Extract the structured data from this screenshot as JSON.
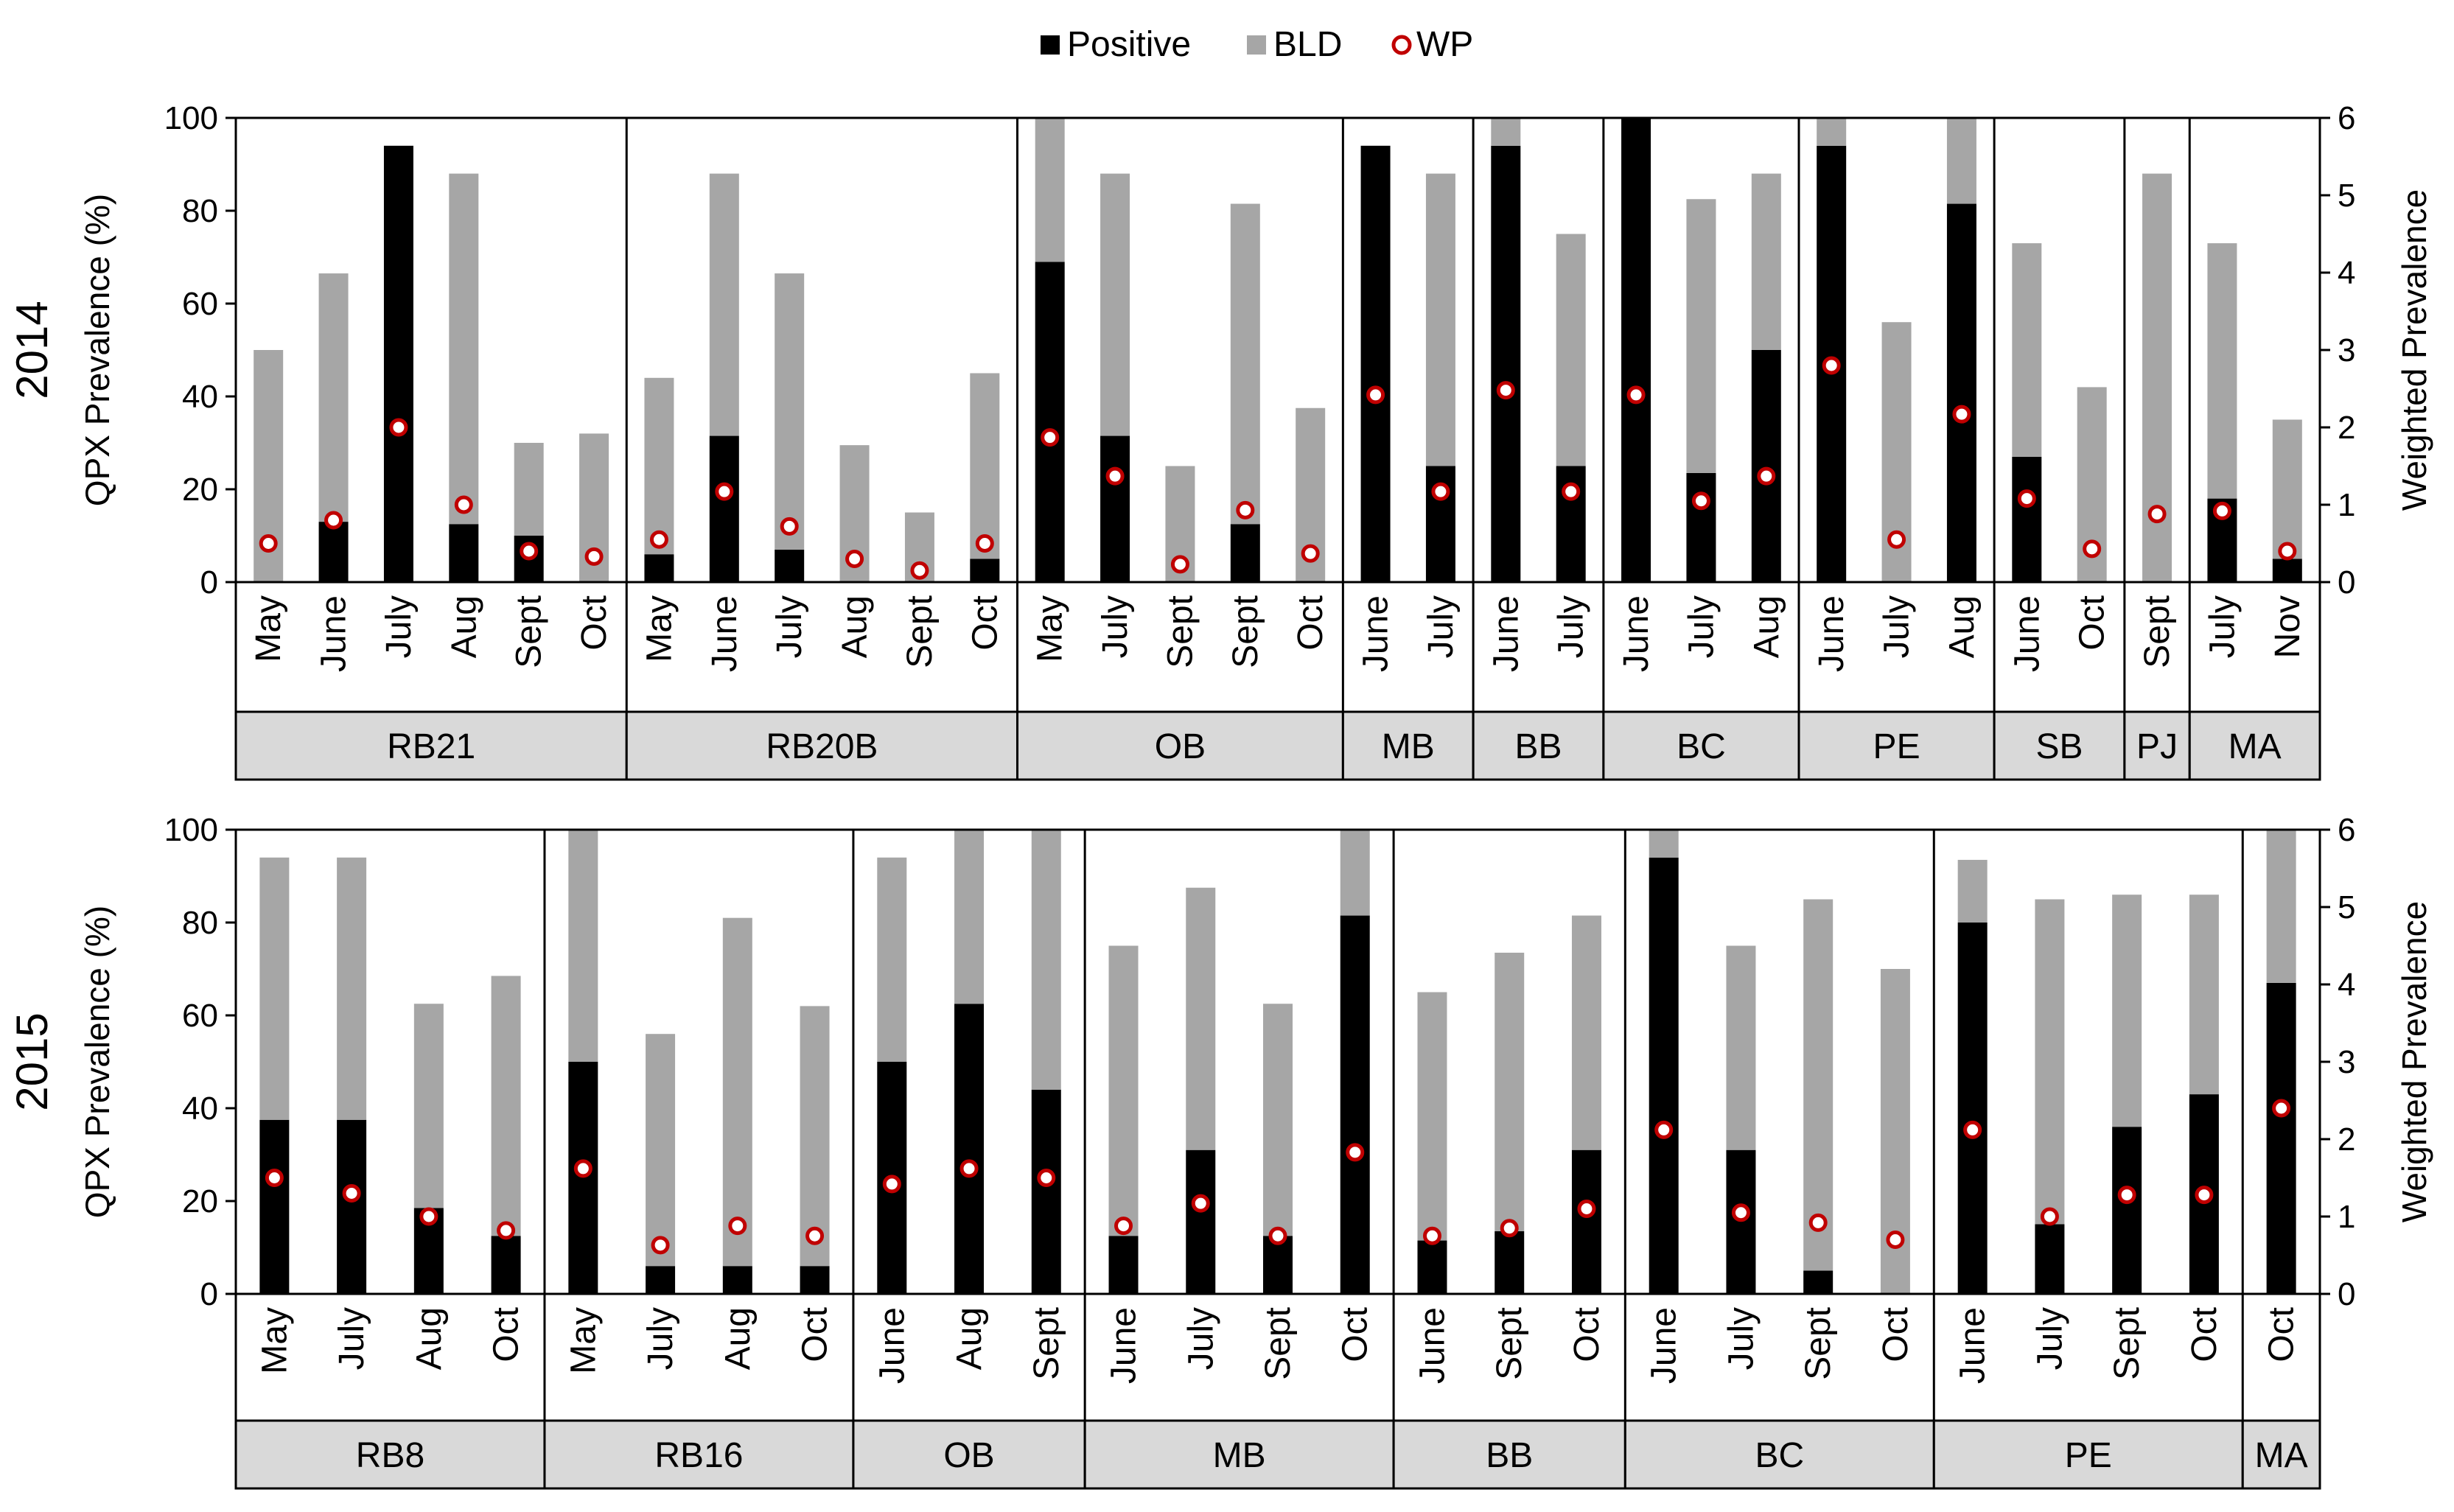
{
  "legend": {
    "positive_label": "Positive",
    "bld_label": "BLD",
    "wp_label": "WP"
  },
  "colors": {
    "positive": "#000000",
    "bld": "#a6a6a6",
    "wp_marker_stroke": "#c00000",
    "wp_marker_fill": "#ffffff",
    "group_band": "#d9d9d9"
  },
  "chart_data": [
    {
      "type": "bar",
      "stacking": "stacked",
      "title": "2014",
      "ylabel": "QPX Prevalence (%)",
      "y2label": "Weighted Prevalence",
      "ylim": [
        0,
        100
      ],
      "y2lim": [
        0,
        6
      ],
      "yticks": [
        "0",
        "20",
        "40",
        "60",
        "80",
        "100"
      ],
      "y2ticks": [
        "0",
        "1",
        "2",
        "3",
        "4",
        "5",
        "6"
      ],
      "groups": [
        {
          "name": "RB21",
          "bars": [
            {
              "label": "May",
              "positive": 0,
              "bld": 50,
              "wp": 0.5
            },
            {
              "label": "June",
              "positive": 13,
              "bld": 53.5,
              "wp": 0.8
            },
            {
              "label": "July",
              "positive": 94,
              "bld": 0,
              "wp": 2.0
            },
            {
              "label": "Aug",
              "positive": 12.5,
              "bld": 75.5,
              "wp": 1.0
            },
            {
              "label": "Sept",
              "positive": 10,
              "bld": 20,
              "wp": 0.4
            },
            {
              "label": "Oct",
              "positive": 0,
              "bld": 32,
              "wp": 0.33
            }
          ]
        },
        {
          "name": "RB20B",
          "bars": [
            {
              "label": "May",
              "positive": 6,
              "bld": 38,
              "wp": 0.55
            },
            {
              "label": "June",
              "positive": 31.5,
              "bld": 56.5,
              "wp": 1.17
            },
            {
              "label": "July",
              "positive": 7,
              "bld": 59.5,
              "wp": 0.72
            },
            {
              "label": "Aug",
              "positive": 0,
              "bld": 29.5,
              "wp": 0.3
            },
            {
              "label": "Sept",
              "positive": 0,
              "bld": 15,
              "wp": 0.15
            },
            {
              "label": "Oct",
              "positive": 5,
              "bld": 40,
              "wp": 0.5
            }
          ]
        },
        {
          "name": "OB",
          "bars": [
            {
              "label": "May",
              "positive": 69,
              "bld": 31,
              "wp": 1.87
            },
            {
              "label": "July",
              "positive": 31.5,
              "bld": 56.5,
              "wp": 1.37
            },
            {
              "label": "Sept",
              "positive": 0,
              "bld": 25,
              "wp": 0.23
            },
            {
              "label": "Sept",
              "positive": 12.5,
              "bld": 69,
              "wp": 0.93
            },
            {
              "label": "Oct",
              "positive": 0,
              "bld": 37.5,
              "wp": 0.37
            }
          ]
        },
        {
          "name": "MB",
          "bars": [
            {
              "label": "June",
              "positive": 94,
              "bld": 0,
              "wp": 2.42
            },
            {
              "label": "July",
              "positive": 25,
              "bld": 63,
              "wp": 1.17
            }
          ]
        },
        {
          "name": "BB",
          "bars": [
            {
              "label": "June",
              "positive": 94,
              "bld": 6,
              "wp": 2.48
            },
            {
              "label": "July",
              "positive": 25,
              "bld": 50,
              "wp": 1.17
            }
          ]
        },
        {
          "name": "BC",
          "bars": [
            {
              "label": "June",
              "positive": 100,
              "bld": 0,
              "wp": 2.42
            },
            {
              "label": "July",
              "positive": 23.5,
              "bld": 59,
              "wp": 1.05
            },
            {
              "label": "Aug",
              "positive": 50,
              "bld": 38,
              "wp": 1.37
            }
          ]
        },
        {
          "name": "PE",
          "bars": [
            {
              "label": "June",
              "positive": 94,
              "bld": 6,
              "wp": 2.8
            },
            {
              "label": "July",
              "positive": 0,
              "bld": 56,
              "wp": 0.55
            },
            {
              "label": "Aug",
              "positive": 81.5,
              "bld": 18.5,
              "wp": 2.17
            }
          ]
        },
        {
          "name": "SB",
          "bars": [
            {
              "label": "June",
              "positive": 27,
              "bld": 46,
              "wp": 1.08
            },
            {
              "label": "Oct",
              "positive": 0,
              "bld": 42,
              "wp": 0.43
            }
          ]
        },
        {
          "name": "PJ",
          "bars": [
            {
              "label": "Sept",
              "positive": 0,
              "bld": 88,
              "wp": 0.88
            }
          ]
        },
        {
          "name": "MA",
          "bars": [
            {
              "label": "July",
              "positive": 18,
              "bld": 55,
              "wp": 0.92
            },
            {
              "label": "Nov",
              "positive": 5,
              "bld": 30,
              "wp": 0.4
            }
          ]
        }
      ]
    },
    {
      "type": "bar",
      "stacking": "stacked",
      "title": "2015",
      "ylabel": "QPX Prevalence (%)",
      "y2label": "Weighted Prevalence",
      "ylim": [
        0,
        100
      ],
      "y2lim": [
        0,
        6
      ],
      "yticks": [
        "0",
        "20",
        "40",
        "60",
        "80",
        "100"
      ],
      "y2ticks": [
        "0",
        "1",
        "2",
        "3",
        "4",
        "5",
        "6"
      ],
      "groups": [
        {
          "name": "RB8",
          "bars": [
            {
              "label": "May",
              "positive": 37.5,
              "bld": 56.5,
              "wp": 1.5
            },
            {
              "label": "July",
              "positive": 37.5,
              "bld": 56.5,
              "wp": 1.3
            },
            {
              "label": "Aug",
              "positive": 18.5,
              "bld": 44,
              "wp": 1.0
            },
            {
              "label": "Oct",
              "positive": 12.5,
              "bld": 56,
              "wp": 0.82
            }
          ]
        },
        {
          "name": "RB16",
          "bars": [
            {
              "label": "May",
              "positive": 50,
              "bld": 50,
              "wp": 1.62
            },
            {
              "label": "July",
              "positive": 6,
              "bld": 50,
              "wp": 0.63
            },
            {
              "label": "Aug",
              "positive": 6,
              "bld": 75,
              "wp": 0.88
            },
            {
              "label": "Oct",
              "positive": 6,
              "bld": 56,
              "wp": 0.75
            }
          ]
        },
        {
          "name": "OB",
          "bars": [
            {
              "label": "June",
              "positive": 50,
              "bld": 44,
              "wp": 1.42
            },
            {
              "label": "Aug",
              "positive": 62.5,
              "bld": 37.5,
              "wp": 1.62
            },
            {
              "label": "Sept",
              "positive": 44,
              "bld": 56,
              "wp": 1.5
            }
          ]
        },
        {
          "name": "MB",
          "bars": [
            {
              "label": "June",
              "positive": 12.5,
              "bld": 62.5,
              "wp": 0.88
            },
            {
              "label": "July",
              "positive": 31,
              "bld": 56.5,
              "wp": 1.17
            },
            {
              "label": "Sept",
              "positive": 12.5,
              "bld": 50,
              "wp": 0.75
            },
            {
              "label": "Oct",
              "positive": 81.5,
              "bld": 18.5,
              "wp": 1.83
            }
          ]
        },
        {
          "name": "BB",
          "bars": [
            {
              "label": "June",
              "positive": 11.5,
              "bld": 53.5,
              "wp": 0.75
            },
            {
              "label": "Sept",
              "positive": 13.5,
              "bld": 60,
              "wp": 0.85
            },
            {
              "label": "Oct",
              "positive": 31,
              "bld": 50.5,
              "wp": 1.1
            }
          ]
        },
        {
          "name": "BC",
          "bars": [
            {
              "label": "June",
              "positive": 94,
              "bld": 6,
              "wp": 2.12
            },
            {
              "label": "July",
              "positive": 31,
              "bld": 44,
              "wp": 1.05
            },
            {
              "label": "Sept",
              "positive": 5,
              "bld": 80,
              "wp": 0.92
            },
            {
              "label": "Oct",
              "positive": 0,
              "bld": 70,
              "wp": 0.7
            }
          ]
        },
        {
          "name": "PE",
          "bars": [
            {
              "label": "June",
              "positive": 80,
              "bld": 13.5,
              "wp": 2.12
            },
            {
              "label": "July",
              "positive": 15,
              "bld": 70,
              "wp": 1.0
            },
            {
              "label": "Sept",
              "positive": 36,
              "bld": 50,
              "wp": 1.28
            },
            {
              "label": "Oct",
              "positive": 43,
              "bld": 43,
              "wp": 1.28
            }
          ]
        },
        {
          "name": "MA",
          "bars": [
            {
              "label": "Oct",
              "positive": 67,
              "bld": 33,
              "wp": 2.4
            }
          ]
        }
      ]
    }
  ]
}
